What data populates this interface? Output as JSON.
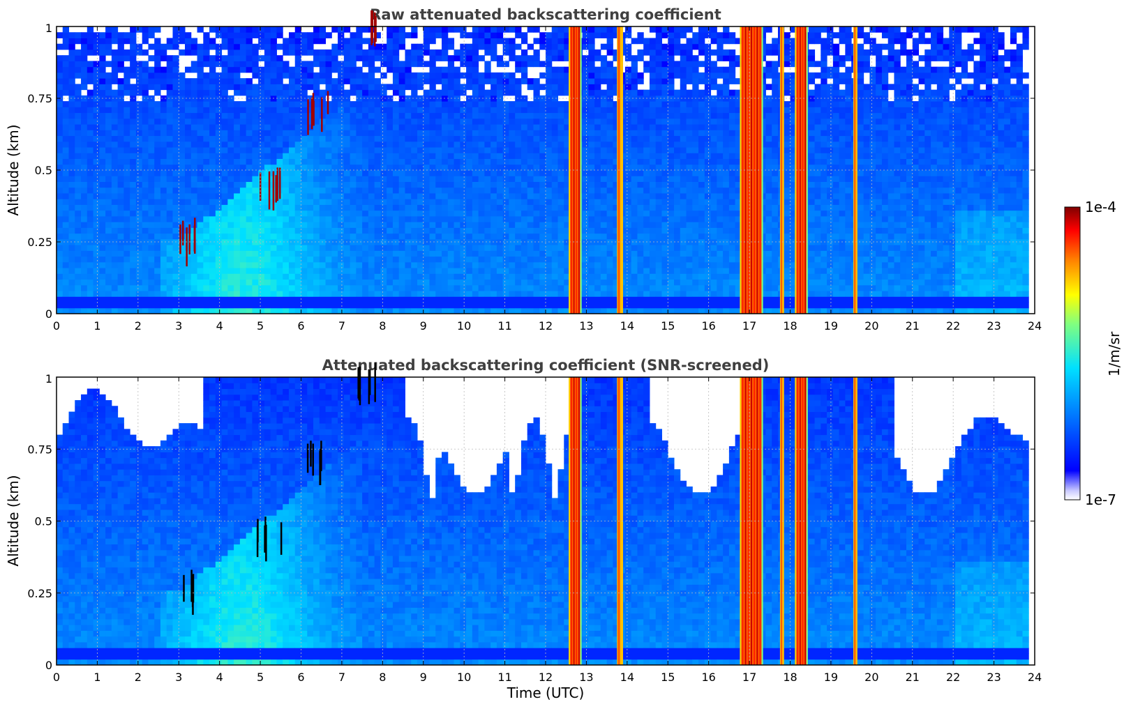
{
  "chart_data": [
    {
      "type": "heatmap",
      "title": "Raw attenuated backscattering coefficient",
      "xlabel": "",
      "ylabel": "Altitude (km)",
      "xlim": [
        0,
        24
      ],
      "ylim": [
        0,
        1
      ],
      "x_ticks": [
        "0",
        "1",
        "2",
        "3",
        "4",
        "5",
        "6",
        "7",
        "8",
        "9",
        "10",
        "11",
        "12",
        "13",
        "14",
        "15",
        "16",
        "17",
        "18",
        "19",
        "20",
        "21",
        "22",
        "23",
        "24"
      ],
      "y_ticks": [
        "0",
        "0.25",
        "0.5",
        "0.75",
        "1"
      ],
      "grid": true,
      "screened": false,
      "color_scale": "log jet",
      "cloud_columns": [
        {
          "x_start": 12.6,
          "x_end": 12.85,
          "intensity": "high"
        },
        {
          "x_start": 13.75,
          "x_end": 13.9,
          "intensity": "medium"
        },
        {
          "x_start": 16.8,
          "x_end": 17.3,
          "intensity": "high"
        },
        {
          "x_start": 17.75,
          "x_end": 17.85,
          "intensity": "medium"
        },
        {
          "x_start": 18.15,
          "x_end": 18.4,
          "intensity": "high"
        },
        {
          "x_start": 19.55,
          "x_end": 19.65,
          "intensity": "medium"
        }
      ],
      "aerosol_features": [
        {
          "x": 3.3,
          "y": 0.24,
          "intensity": "high"
        },
        {
          "x": 5.2,
          "y": 0.42,
          "intensity": "high"
        },
        {
          "x": 6.4,
          "y": 0.68,
          "intensity": "high"
        },
        {
          "x": 7.6,
          "y": 0.96,
          "intensity": "high"
        }
      ]
    },
    {
      "type": "heatmap",
      "title": "Attenuated backscattering coefficient (SNR-screened)",
      "xlabel": "Time (UTC)",
      "ylabel": "Altitude (km)",
      "xlim": [
        0,
        24
      ],
      "ylim": [
        0,
        1
      ],
      "x_ticks": [
        "0",
        "1",
        "2",
        "3",
        "4",
        "5",
        "6",
        "7",
        "8",
        "9",
        "10",
        "11",
        "12",
        "13",
        "14",
        "15",
        "16",
        "17",
        "18",
        "19",
        "20",
        "21",
        "22",
        "23",
        "24"
      ],
      "y_ticks": [
        "0",
        "0.25",
        "0.5",
        "0.75",
        "1"
      ],
      "grid": true,
      "screened": true,
      "color_scale": "log jet",
      "cloud_columns": [
        {
          "x_start": 12.6,
          "x_end": 12.85,
          "intensity": "high"
        },
        {
          "x_start": 13.75,
          "x_end": 13.9,
          "intensity": "medium"
        },
        {
          "x_start": 16.8,
          "x_end": 17.3,
          "intensity": "high"
        },
        {
          "x_start": 17.75,
          "x_end": 17.85,
          "intensity": "medium"
        },
        {
          "x_start": 18.15,
          "x_end": 18.4,
          "intensity": "high"
        },
        {
          "x_start": 19.55,
          "x_end": 19.65,
          "intensity": "medium"
        }
      ],
      "aerosol_features": [
        {
          "x": 3.3,
          "y": 0.24,
          "intensity": "high"
        },
        {
          "x": 5.2,
          "y": 0.42,
          "intensity": "high"
        },
        {
          "x": 6.4,
          "y": 0.68,
          "intensity": "high"
        },
        {
          "x": 7.6,
          "y": 0.96,
          "intensity": "high"
        }
      ]
    }
  ],
  "colorbar": {
    "label": "1/m/sr",
    "max_label": "1e-4",
    "min_label": "1e-7",
    "scale": "log",
    "range": [
      1e-07,
      0.0001
    ]
  }
}
